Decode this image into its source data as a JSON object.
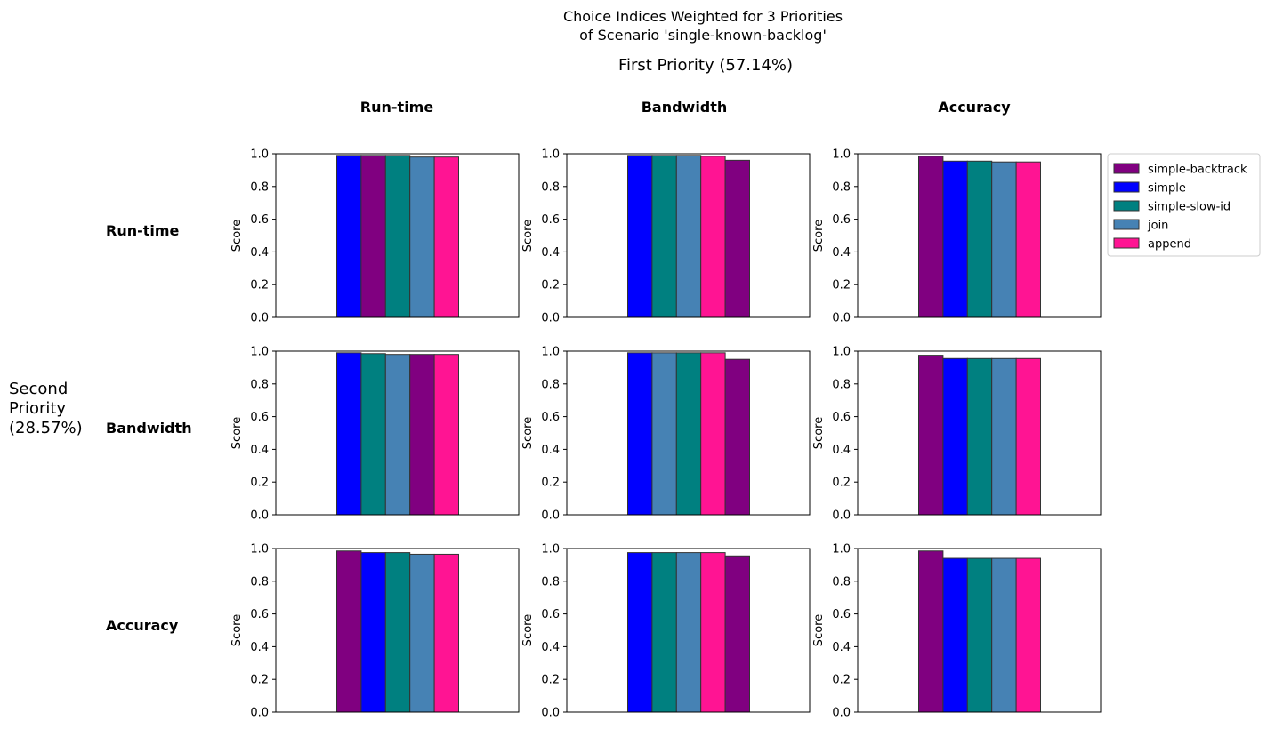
{
  "title_line1": "Choice Indices Weighted for 3 Priorities",
  "title_line2": "of Scenario 'single-known-backlog'",
  "first_priority_label": "First Priority (57.14%)",
  "second_priority_label": [
    "Second",
    "Priority",
    "(28.57%)"
  ],
  "column_headers": [
    "Run-time",
    "Bandwidth",
    "Accuracy"
  ],
  "row_headers": [
    "Run-time",
    "Bandwidth",
    "Accuracy"
  ],
  "colors": {
    "simple-backtrack": "#800080",
    "simple": "#0000ff",
    "simple-slow-id": "#008080",
    "join": "#4682b4",
    "append": "#ff1493"
  },
  "legend": {
    "placement": "right of top-right subplot",
    "entries": [
      "simple-backtrack",
      "simple",
      "simple-slow-id",
      "join",
      "append"
    ]
  },
  "chart_data": {
    "type": "bar",
    "layout": "3x3 grid of bar subplots",
    "ylabel": "Score",
    "ylim": [
      0,
      1
    ],
    "yticks": [
      "0.0",
      "0.2",
      "0.4",
      "0.6",
      "0.8",
      "1.0"
    ],
    "grid": false,
    "subplots": [
      {
        "row": "Run-time",
        "col": "Run-time",
        "bars": [
          {
            "series": "simple",
            "value": 0.99
          },
          {
            "series": "simple-backtrack",
            "value": 0.99
          },
          {
            "series": "simple-slow-id",
            "value": 0.99
          },
          {
            "series": "join",
            "value": 0.98
          },
          {
            "series": "append",
            "value": 0.98
          }
        ]
      },
      {
        "row": "Run-time",
        "col": "Bandwidth",
        "bars": [
          {
            "series": "simple",
            "value": 0.99
          },
          {
            "series": "simple-slow-id",
            "value": 0.99
          },
          {
            "series": "join",
            "value": 0.99
          },
          {
            "series": "append",
            "value": 0.985
          },
          {
            "series": "simple-backtrack",
            "value": 0.96
          }
        ]
      },
      {
        "row": "Run-time",
        "col": "Accuracy",
        "bars": [
          {
            "series": "simple-backtrack",
            "value": 0.985
          },
          {
            "series": "simple",
            "value": 0.955
          },
          {
            "series": "simple-slow-id",
            "value": 0.955
          },
          {
            "series": "join",
            "value": 0.95
          },
          {
            "series": "append",
            "value": 0.95
          }
        ]
      },
      {
        "row": "Bandwidth",
        "col": "Run-time",
        "bars": [
          {
            "series": "simple",
            "value": 0.99
          },
          {
            "series": "simple-slow-id",
            "value": 0.985
          },
          {
            "series": "join",
            "value": 0.98
          },
          {
            "series": "simple-backtrack",
            "value": 0.98
          },
          {
            "series": "append",
            "value": 0.98
          }
        ]
      },
      {
        "row": "Bandwidth",
        "col": "Bandwidth",
        "bars": [
          {
            "series": "simple",
            "value": 0.99
          },
          {
            "series": "join",
            "value": 0.99
          },
          {
            "series": "simple-slow-id",
            "value": 0.99
          },
          {
            "series": "append",
            "value": 0.99
          },
          {
            "series": "simple-backtrack",
            "value": 0.95
          }
        ]
      },
      {
        "row": "Bandwidth",
        "col": "Accuracy",
        "bars": [
          {
            "series": "simple-backtrack",
            "value": 0.975
          },
          {
            "series": "simple",
            "value": 0.955
          },
          {
            "series": "simple-slow-id",
            "value": 0.955
          },
          {
            "series": "join",
            "value": 0.955
          },
          {
            "series": "append",
            "value": 0.955
          }
        ]
      },
      {
        "row": "Accuracy",
        "col": "Run-time",
        "bars": [
          {
            "series": "simple-backtrack",
            "value": 0.985
          },
          {
            "series": "simple",
            "value": 0.975
          },
          {
            "series": "simple-slow-id",
            "value": 0.975
          },
          {
            "series": "join",
            "value": 0.965
          },
          {
            "series": "append",
            "value": 0.965
          }
        ]
      },
      {
        "row": "Accuracy",
        "col": "Bandwidth",
        "bars": [
          {
            "series": "simple",
            "value": 0.975
          },
          {
            "series": "simple-slow-id",
            "value": 0.975
          },
          {
            "series": "join",
            "value": 0.975
          },
          {
            "series": "append",
            "value": 0.975
          },
          {
            "series": "simple-backtrack",
            "value": 0.955
          }
        ]
      },
      {
        "row": "Accuracy",
        "col": "Accuracy",
        "bars": [
          {
            "series": "simple-backtrack",
            "value": 0.985
          },
          {
            "series": "simple",
            "value": 0.94
          },
          {
            "series": "simple-slow-id",
            "value": 0.94
          },
          {
            "series": "join",
            "value": 0.94
          },
          {
            "series": "append",
            "value": 0.94
          }
        ]
      }
    ]
  }
}
